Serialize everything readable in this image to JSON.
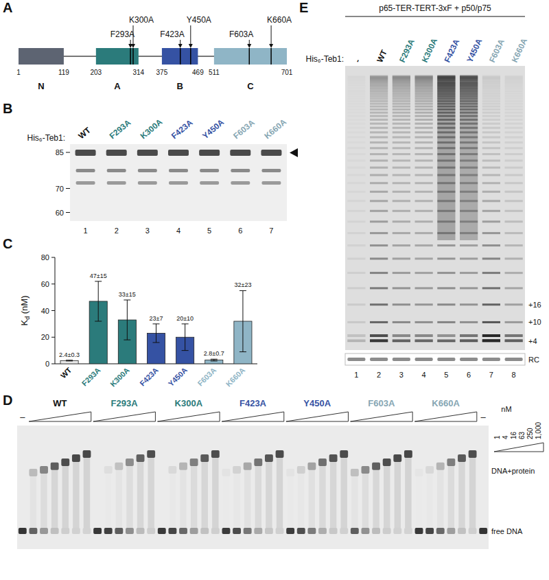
{
  "panels": {
    "A": {
      "label": "A",
      "domains": [
        {
          "name": "N",
          "start": 1,
          "end": 119,
          "color": "#5d6472"
        },
        {
          "name": "A",
          "start": 203,
          "end": 314,
          "color": "#2b7b7b"
        },
        {
          "name": "B",
          "start": 375,
          "end": 469,
          "color": "#3552a3"
        },
        {
          "name": "C",
          "start": 511,
          "end": 701,
          "color": "#8fb5c6"
        }
      ],
      "mutations": [
        {
          "label": "F293A",
          "position": 293,
          "color": "#2b7b7b"
        },
        {
          "label": "K300A",
          "position": 300,
          "color": "#2b7b7b"
        },
        {
          "label": "F423A",
          "position": 423,
          "color": "#3552a3"
        },
        {
          "label": "Y450A",
          "position": 450,
          "color": "#3552a3"
        },
        {
          "label": "F603A",
          "position": 603,
          "color": "#86a6b3"
        },
        {
          "label": "K660A",
          "position": 660,
          "color": "#86a6b3"
        }
      ]
    },
    "B": {
      "label": "B",
      "row_label": "His₆-Teb1:",
      "lanes": [
        {
          "label": "WT",
          "color": "#111111"
        },
        {
          "label": "F293A",
          "color": "#2b7b7b"
        },
        {
          "label": "K300A",
          "color": "#2b7b7b"
        },
        {
          "label": "F423A",
          "color": "#3552a3"
        },
        {
          "label": "Y450A",
          "color": "#3552a3"
        },
        {
          "label": "F603A",
          "color": "#86a6b3"
        },
        {
          "label": "K660A",
          "color": "#86a6b3"
        }
      ],
      "lane_numbers": [
        1,
        2,
        3,
        4,
        5,
        6,
        7
      ],
      "markers": [
        85,
        70,
        60
      ]
    },
    "C": {
      "label": "C"
    },
    "D": {
      "label": "D",
      "groups": [
        {
          "label": "WT",
          "color": "#111111"
        },
        {
          "label": "F293A",
          "color": "#2b7b7b"
        },
        {
          "label": "K300A",
          "color": "#2b7b7b"
        },
        {
          "label": "F423A",
          "color": "#3552a3"
        },
        {
          "label": "Y450A",
          "color": "#3552a3"
        },
        {
          "label": "F603A",
          "color": "#86a6b3"
        },
        {
          "label": "K660A",
          "color": "#86a6b3"
        }
      ],
      "blank_label": "–",
      "concentrations": [
        1,
        4,
        16,
        63,
        250,
        {
          "value": 1000,
          "label": "1,000"
        }
      ],
      "unit": "nM",
      "band_labels": [
        "DNA+protein",
        "free DNA"
      ]
    },
    "E": {
      "label": "E",
      "title": "p65-TER-TERT-3xF + p50/p75",
      "row_label": "His₆-Teb1:",
      "lanes": [
        {
          "label": "-",
          "color": "#111111"
        },
        {
          "label": "WT",
          "color": "#111111"
        },
        {
          "label": "F293A",
          "color": "#2b7b7b"
        },
        {
          "label": "K300A",
          "color": "#2b7b7b"
        },
        {
          "label": "F423A",
          "color": "#3552a3"
        },
        {
          "label": "Y450A",
          "color": "#3552a3"
        },
        {
          "label": "F603A",
          "color": "#86a6b3"
        },
        {
          "label": "K660A",
          "color": "#86a6b3"
        }
      ],
      "lane_numbers": [
        1,
        2,
        3,
        4,
        5,
        6,
        7,
        8
      ],
      "size_markers": [
        "+16",
        "+10",
        "+4"
      ],
      "control_label": "RC"
    }
  },
  "chart_data": {
    "type": "bar",
    "ylabel": "Kd (nM)",
    "categories": [
      "WT",
      "F293A",
      "K300A",
      "F423A",
      "Y450A",
      "F603A",
      "K660A"
    ],
    "values": [
      2.4,
      47,
      33,
      23,
      20,
      2.8,
      32
    ],
    "errors": [
      0.3,
      15,
      15,
      7,
      10,
      0.7,
      23
    ],
    "value_labels": [
      "2.4±0.3",
      "47±15",
      "33±15",
      "23±7",
      "20±10",
      "2.8±0.7",
      "32±23"
    ],
    "data_labels": true,
    "colors": [
      "#e8e8e8",
      "#2b7b7b",
      "#2b7b7b",
      "#3552a3",
      "#3552a3",
      "#8fb5c6",
      "#8fb5c6"
    ],
    "ylim": [
      0,
      80
    ],
    "yticks": [
      0,
      20,
      40,
      60,
      80
    ]
  }
}
